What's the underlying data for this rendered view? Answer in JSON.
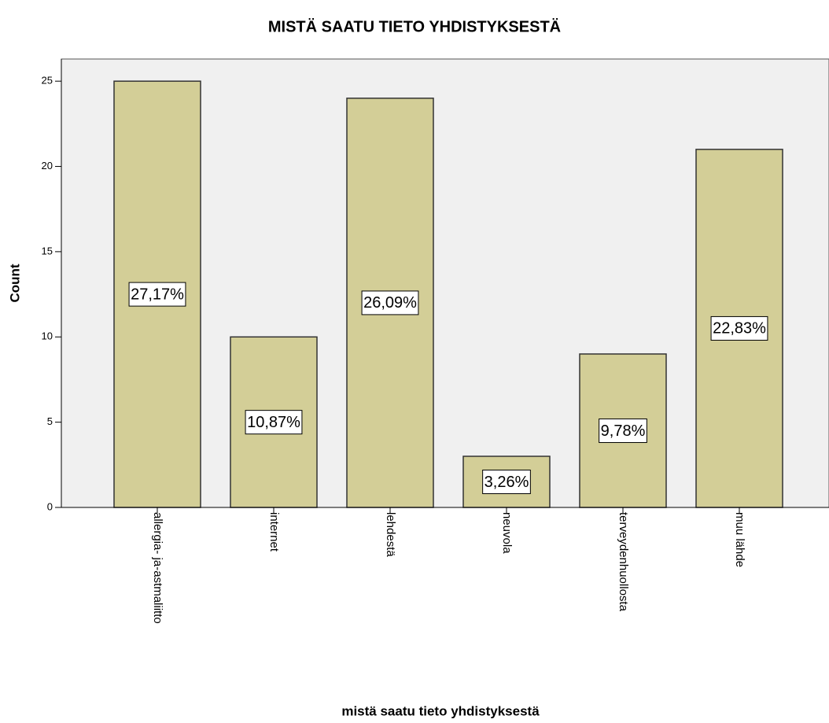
{
  "chart_data": {
    "type": "bar",
    "title": "MISTÄ SAATU TIETO YHDISTYKSESTÄ",
    "x_label": "mistä saatu tieto yhdistyksestä",
    "y_label": "Count",
    "categories": [
      "allergia- ja-astmaliitto",
      "internet",
      "lehdestä",
      "neuvola",
      "terveydenhuollosta",
      "muu lähde"
    ],
    "values": [
      25,
      10,
      24,
      3,
      9,
      21
    ],
    "data_labels": [
      {
        "value": 27.17,
        "label": "27,17%"
      },
      {
        "value": 10.87,
        "label": "10,87%"
      },
      {
        "value": 26.09,
        "label": "26,09%"
      },
      {
        "value": 3.26,
        "label": "3,26%"
      },
      {
        "value": 9.78,
        "label": "9,78%"
      },
      {
        "value": 22.83,
        "label": "22,83%"
      }
    ],
    "color": "#d3ce97",
    "ylim": [
      0,
      26.3
    ],
    "yticks": [
      0,
      5,
      10,
      15,
      20,
      25
    ],
    "grid": false
  }
}
